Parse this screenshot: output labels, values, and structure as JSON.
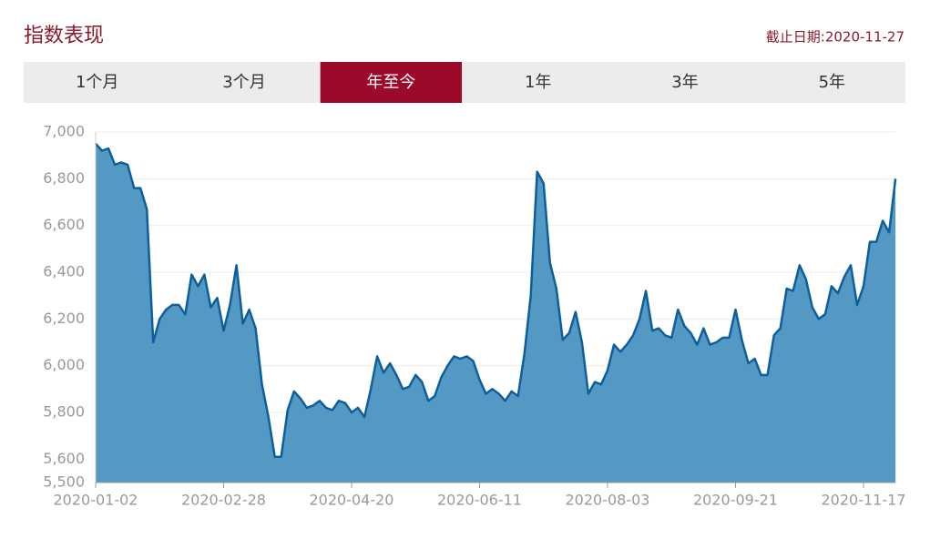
{
  "header": {
    "title": "指数表现",
    "date": "截止日期:2020-11-27"
  },
  "tabs": [
    "1个月",
    "3个月",
    "年至今",
    "1年",
    "3年",
    "5年"
  ],
  "active_tab": 2,
  "chart_data": {
    "type": "area",
    "categories": [
      "2020-01-02",
      null,
      null,
      null,
      null,
      null,
      null,
      null,
      null,
      null,
      null,
      null,
      null,
      null,
      null,
      null,
      null,
      null,
      null,
      null,
      "2020-02-28",
      null,
      null,
      null,
      null,
      null,
      null,
      null,
      null,
      null,
      null,
      null,
      null,
      null,
      null,
      null,
      null,
      null,
      null,
      null,
      "2020-04-20",
      null,
      null,
      null,
      null,
      null,
      null,
      null,
      null,
      null,
      null,
      null,
      null,
      null,
      null,
      null,
      null,
      null,
      null,
      null,
      "2020-06-11",
      null,
      null,
      null,
      null,
      null,
      null,
      null,
      null,
      null,
      null,
      null,
      null,
      null,
      null,
      null,
      null,
      null,
      null,
      null,
      "2020-08-03",
      null,
      null,
      null,
      null,
      null,
      null,
      null,
      null,
      null,
      null,
      null,
      null,
      null,
      null,
      null,
      null,
      null,
      null,
      null,
      "2020-09-21",
      null,
      null,
      null,
      null,
      null,
      null,
      null,
      null,
      null,
      null,
      null,
      null,
      null,
      null,
      null,
      null,
      null,
      null,
      null,
      "2020-11-17",
      null,
      null,
      null,
      null,
      null
    ],
    "values": [
      6950,
      6920,
      6930,
      6860,
      6870,
      6860,
      6760,
      6760,
      6670,
      6100,
      6200,
      6240,
      6260,
      6260,
      6220,
      6390,
      6340,
      6390,
      6250,
      6290,
      6150,
      6260,
      6430,
      6180,
      6240,
      6160,
      5920,
      5780,
      5610,
      5610,
      5810,
      5890,
      5860,
      5820,
      5830,
      5850,
      5820,
      5810,
      5850,
      5840,
      5800,
      5820,
      5780,
      5900,
      6040,
      5970,
      6010,
      5960,
      5900,
      5910,
      5960,
      5930,
      5850,
      5870,
      5950,
      6000,
      6040,
      6030,
      6040,
      6020,
      5940,
      5880,
      5900,
      5880,
      5850,
      5890,
      5870,
      6050,
      6300,
      6830,
      6780,
      6440,
      6330,
      6110,
      6140,
      6230,
      6100,
      5880,
      5930,
      5920,
      5980,
      6090,
      6060,
      6090,
      6130,
      6200,
      6320,
      6150,
      6160,
      6130,
      6120,
      6240,
      6170,
      6140,
      6090,
      6160,
      6090,
      6100,
      6120,
      6120,
      6240,
      6110,
      6010,
      6030,
      5960,
      5960,
      6130,
      6160,
      6330,
      6320,
      6430,
      6370,
      6250,
      6200,
      6220,
      6340,
      6310,
      6380,
      6430,
      6260,
      6340,
      6530,
      6530,
      6620,
      6570,
      6800
    ],
    "color": "#4b93c1",
    "line_color": "#0d5f9c",
    "ylim": [
      5500,
      7000
    ],
    "yticks": [
      {
        "value": 5500,
        "label": "5,500"
      },
      {
        "value": 5600,
        "label": "5,600"
      },
      {
        "value": 5800,
        "label": "5,800"
      },
      {
        "value": 6000,
        "label": "6,000"
      },
      {
        "value": 6200,
        "label": "6,200"
      },
      {
        "value": 6400,
        "label": "6,400"
      },
      {
        "value": 6600,
        "label": "6,600"
      },
      {
        "value": 6800,
        "label": "6,800"
      },
      {
        "value": 7000,
        "label": "7,000"
      }
    ],
    "grid": true
  }
}
